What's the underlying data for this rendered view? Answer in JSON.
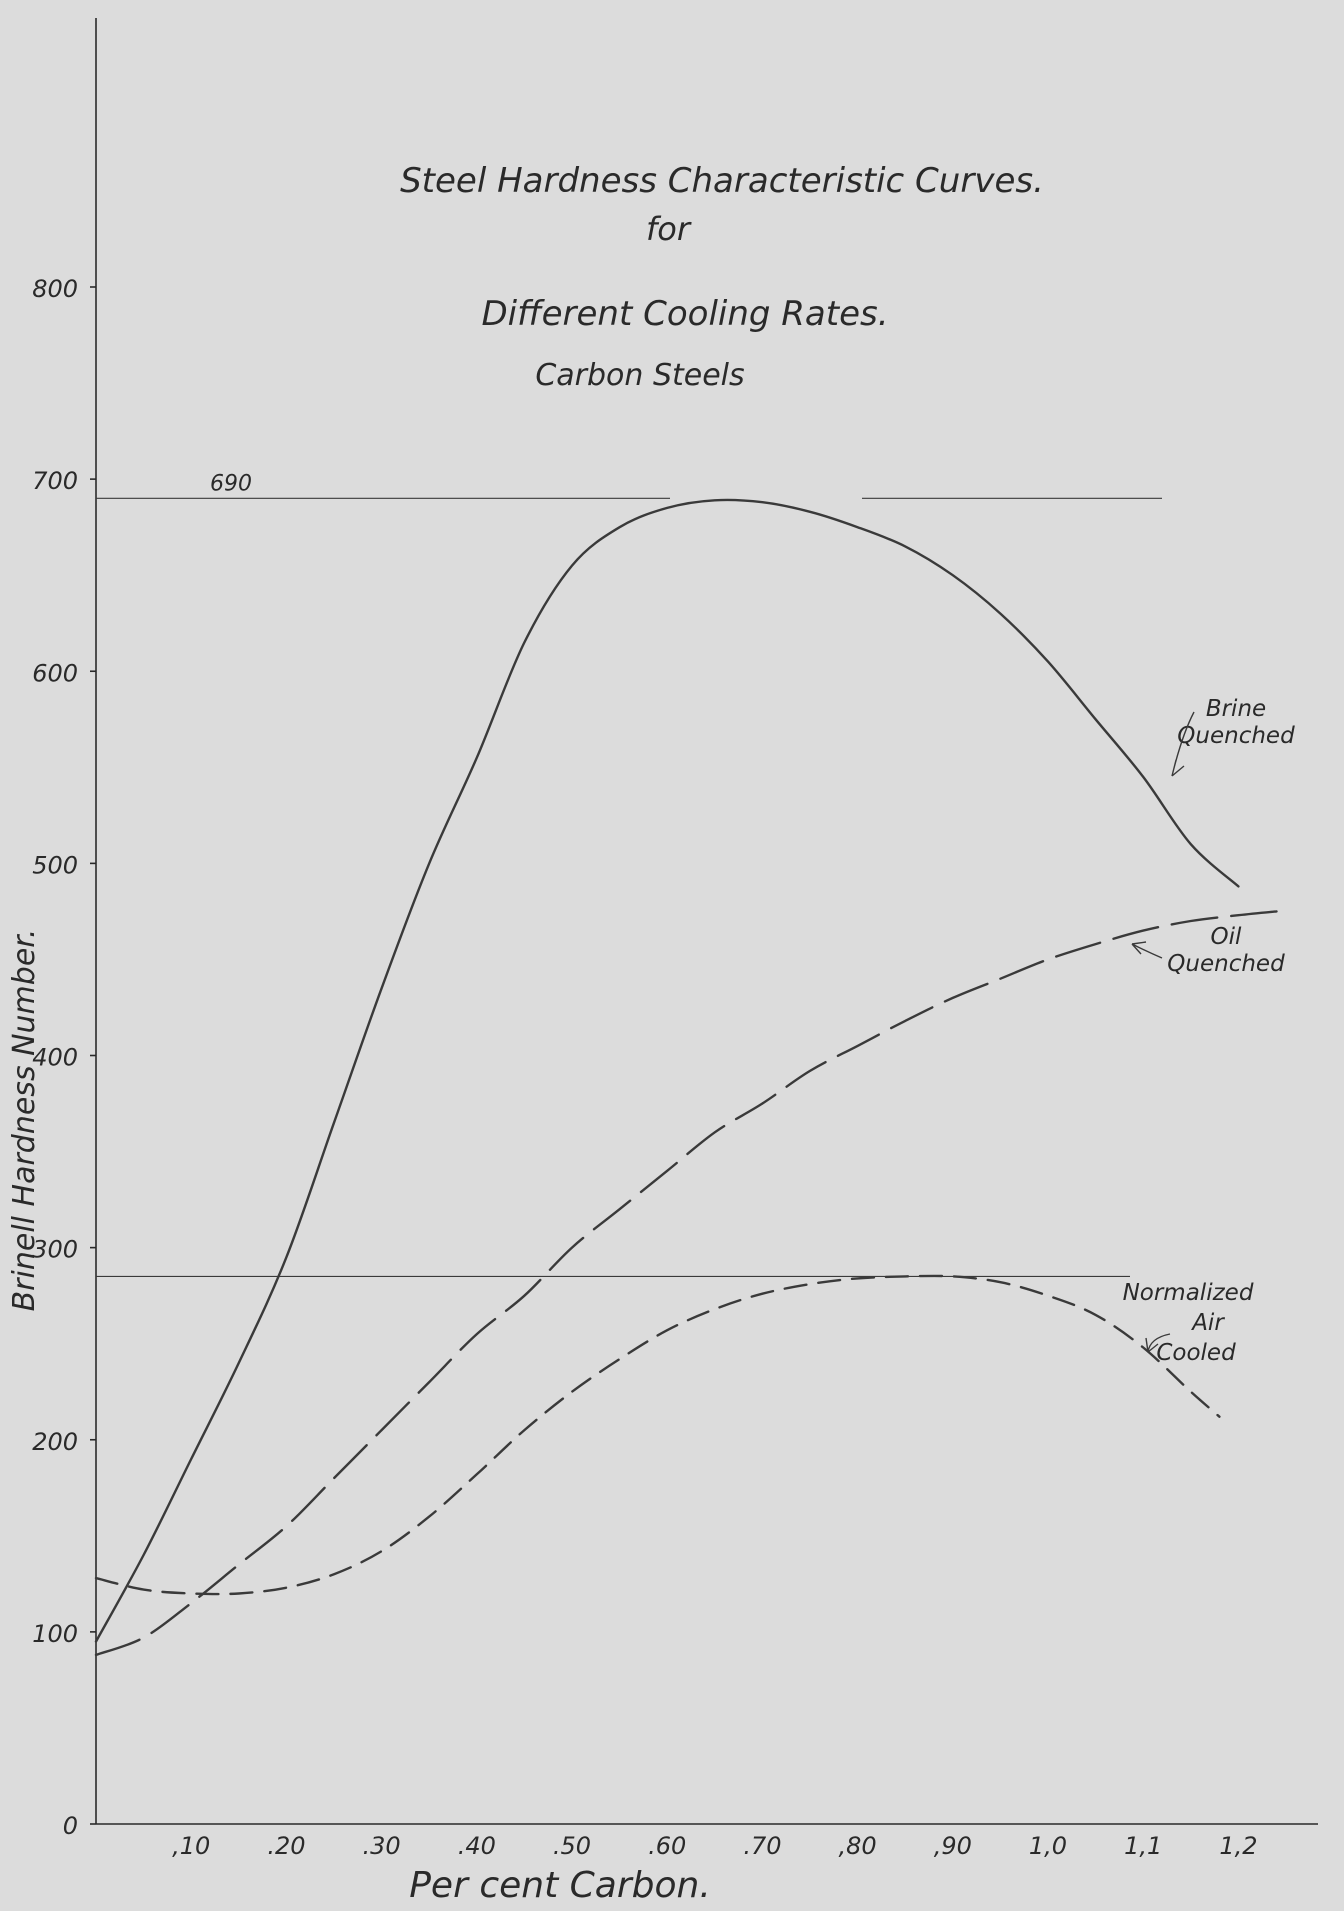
{
  "chart_data": {
    "type": "line",
    "title_lines": [
      "Steel Hardness Characteristic Curves.",
      "for",
      "Different Cooling Rates.",
      "Carbon Steels"
    ],
    "xlabel": "Per cent Carbon.",
    "ylabel": "Brinell Hardness Number.",
    "xlim": [
      0,
      1.25
    ],
    "ylim": [
      0,
      800
    ],
    "x_ticks": [
      {
        "value": 0.1,
        "label": ",10"
      },
      {
        "value": 0.2,
        "label": ".20"
      },
      {
        "value": 0.3,
        "label": ".30"
      },
      {
        "value": 0.4,
        "label": ".40"
      },
      {
        "value": 0.5,
        "label": ".50"
      },
      {
        "value": 0.6,
        "label": ".60"
      },
      {
        "value": 0.7,
        "label": ".70"
      },
      {
        "value": 0.8,
        "label": ",80"
      },
      {
        "value": 0.9,
        "label": ",90"
      },
      {
        "value": 1.0,
        "label": "1,0"
      },
      {
        "value": 1.1,
        "label": "1,1"
      },
      {
        "value": 1.2,
        "label": "1,2"
      }
    ],
    "y_ticks": [
      {
        "value": 0,
        "label": "0"
      },
      {
        "value": 100,
        "label": "100"
      },
      {
        "value": 200,
        "label": "200"
      },
      {
        "value": 300,
        "label": "300"
      },
      {
        "value": 400,
        "label": "400"
      },
      {
        "value": 500,
        "label": "500"
      },
      {
        "value": 600,
        "label": "600"
      },
      {
        "value": 700,
        "label": "700"
      },
      {
        "value": 800,
        "label": "800"
      }
    ],
    "reference_lines": [
      {
        "y": 690,
        "label": "690"
      },
      {
        "y": 285,
        "label": ""
      }
    ],
    "grid": false,
    "series": [
      {
        "name": "Brine Quenched",
        "style": "solid",
        "x": [
          0.0,
          0.05,
          0.1,
          0.15,
          0.2,
          0.25,
          0.3,
          0.35,
          0.4,
          0.45,
          0.5,
          0.55,
          0.6,
          0.65,
          0.7,
          0.75,
          0.8,
          0.85,
          0.9,
          0.95,
          1.0,
          1.05,
          1.1,
          1.15,
          1.2
        ],
        "values": [
          95,
          140,
          190,
          240,
          295,
          365,
          435,
          500,
          555,
          615,
          655,
          675,
          685,
          689,
          688,
          683,
          675,
          665,
          650,
          630,
          605,
          575,
          545,
          510,
          488
        ]
      },
      {
        "name": "Oil Quenched",
        "style": "long-dash",
        "x": [
          0.0,
          0.05,
          0.1,
          0.15,
          0.2,
          0.25,
          0.3,
          0.35,
          0.4,
          0.45,
          0.5,
          0.55,
          0.6,
          0.65,
          0.7,
          0.75,
          0.8,
          0.85,
          0.9,
          0.95,
          1.0,
          1.05,
          1.1,
          1.15,
          1.2,
          1.24
        ],
        "values": [
          88,
          97,
          115,
          135,
          155,
          180,
          205,
          230,
          255,
          275,
          300,
          320,
          340,
          360,
          375,
          392,
          405,
          418,
          430,
          440,
          450,
          458,
          465,
          470,
          473,
          475
        ]
      },
      {
        "name": "Normalized Air Cooled",
        "style": "short-dash",
        "x": [
          0.0,
          0.05,
          0.1,
          0.15,
          0.2,
          0.25,
          0.3,
          0.35,
          0.4,
          0.45,
          0.5,
          0.55,
          0.6,
          0.65,
          0.7,
          0.75,
          0.8,
          0.85,
          0.9,
          0.95,
          1.0,
          1.05,
          1.1,
          1.15,
          1.18
        ],
        "values": [
          128,
          122,
          120,
          120,
          123,
          130,
          142,
          160,
          182,
          205,
          225,
          242,
          257,
          268,
          276,
          281,
          284,
          285,
          285,
          282,
          275,
          265,
          248,
          225,
          212
        ]
      }
    ],
    "annotations": [
      {
        "series": "Brine Quenched",
        "lines": [
          "Brine",
          "Quenched"
        ]
      },
      {
        "series": "Oil Quenched",
        "lines": [
          "Oil",
          "Quenched"
        ]
      },
      {
        "series": "Normalized Air Cooled",
        "lines": [
          "Normalized",
          "Air",
          "Cooled"
        ]
      }
    ]
  }
}
